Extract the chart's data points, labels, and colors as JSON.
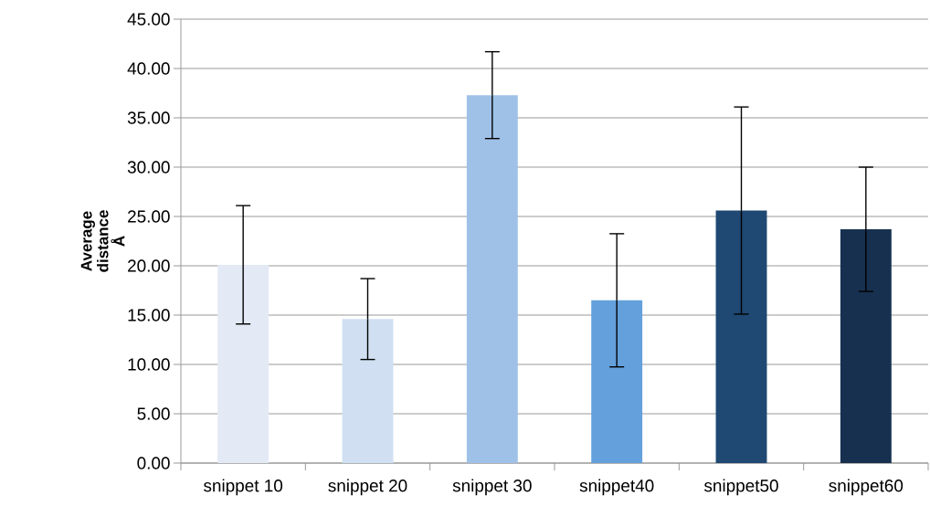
{
  "chart_data": {
    "type": "bar",
    "ylabel": "Average distance Å",
    "categories": [
      "snippet 10",
      "snippet 20",
      "snippet 30",
      "snippet40",
      "snippet50",
      "snippet60"
    ],
    "values": [
      20.1,
      14.6,
      37.3,
      16.5,
      25.6,
      23.7
    ],
    "errors": [
      6.0,
      4.1,
      4.4,
      6.75,
      10.5,
      6.3
    ],
    "colors": [
      "#e3eaf5",
      "#d0e0f2",
      "#9fc1e8",
      "#64a0dc",
      "#1f4872",
      "#17304f"
    ],
    "ylim": [
      0,
      45
    ],
    "yticks": [
      {
        "value": 0,
        "label": "0.00"
      },
      {
        "value": 5,
        "label": "5.00"
      },
      {
        "value": 10,
        "label": "10.00"
      },
      {
        "value": 15,
        "label": "15.00"
      },
      {
        "value": 20,
        "label": "20.00"
      },
      {
        "value": 25,
        "label": "25.00"
      },
      {
        "value": 30,
        "label": "30.00"
      },
      {
        "value": 35,
        "label": "35.00"
      },
      {
        "value": 40,
        "label": "40.00"
      },
      {
        "value": 45,
        "label": "45.00"
      }
    ],
    "grid": "y"
  }
}
